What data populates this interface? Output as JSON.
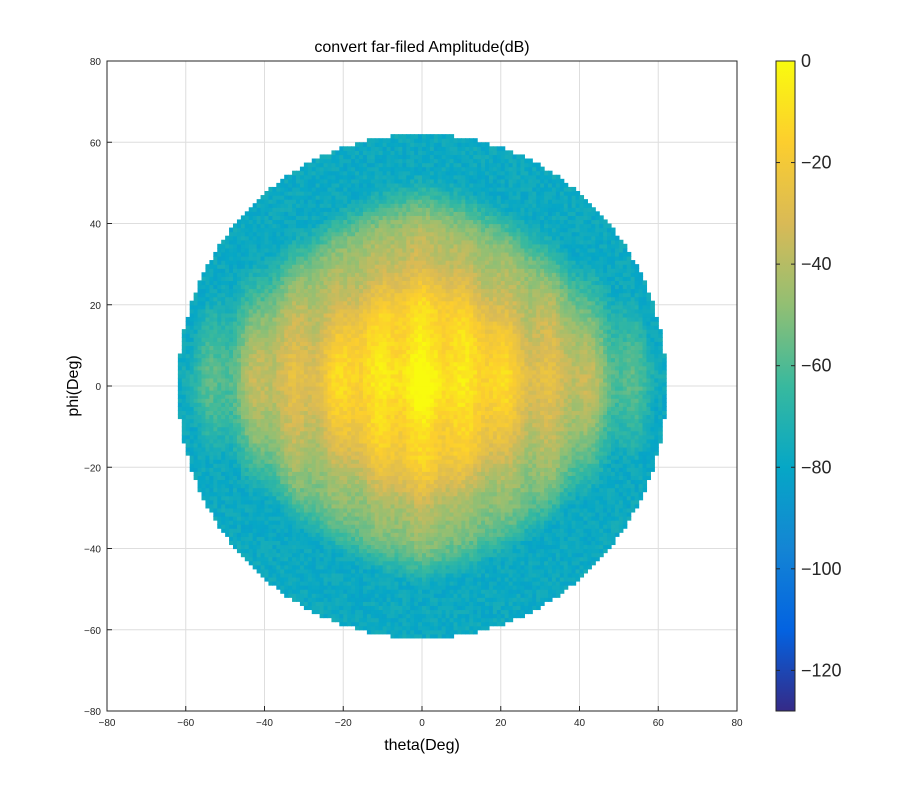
{
  "chart_data": {
    "type": "heatmap",
    "title": "convert far-filed Amplitude(dB)",
    "xlabel": "theta(Deg)",
    "ylabel": "phi(Deg)",
    "xlim": [
      -80,
      80
    ],
    "ylim": [
      -80,
      80
    ],
    "xticks": [
      "−80",
      "−60",
      "−40",
      "−20",
      "0",
      "20",
      "40",
      "60",
      "80"
    ],
    "yticks": [
      "80",
      "60",
      "40",
      "20",
      "0",
      "−20",
      "−40",
      "−60",
      "−80"
    ],
    "grid": true,
    "disk_radius_deg": 62,
    "colormap": "parula",
    "colorbar": {
      "clim": [
        -128,
        0
      ],
      "ticks": [
        0,
        -20,
        -40,
        -60,
        -80,
        -100,
        -120
      ],
      "tick_labels": [
        "0",
        "−20",
        "−40",
        "−60",
        "−80",
        "−100",
        "−120"
      ],
      "colors": [
        "#352a87",
        "#0363e1",
        "#1485d4",
        "#06a7c6",
        "#38b99e",
        "#92bf73",
        "#d9ba56",
        "#fcce2e",
        "#f9fb0e"
      ]
    },
    "peak": {
      "theta": 0,
      "phi": 2,
      "value": 0
    },
    "edge_level_db": -68
  }
}
